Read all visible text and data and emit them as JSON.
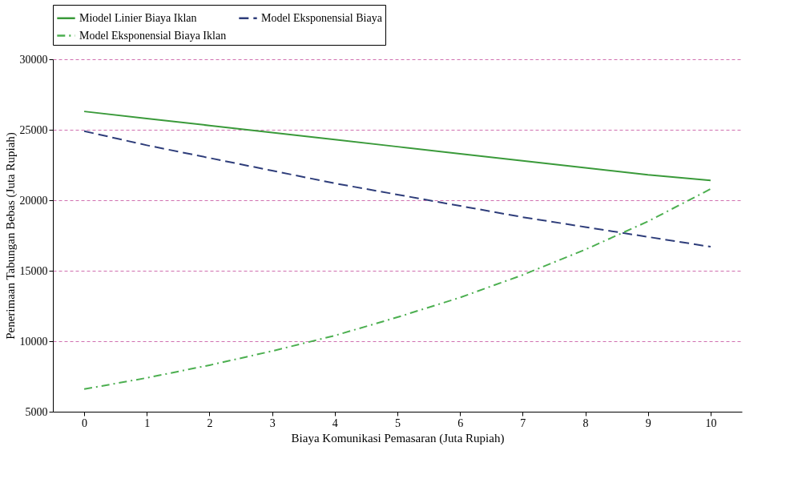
{
  "chart_data": {
    "type": "line",
    "xlabel": "Biaya Komunikasi Pemasaran (Juta Rupiah)",
    "ylabel": "Penerimaan Tabungan Bebas (Juta Rupiah)",
    "categories": [
      "0",
      "1",
      "2",
      "3",
      "4",
      "5",
      "6",
      "7",
      "8",
      "9",
      "10"
    ],
    "series": [
      {
        "name": "Miodel Linier Biaya Iklan",
        "color": "#3a9a3a",
        "line_style": "solid",
        "values": [
          26300,
          25800,
          25300,
          24800,
          24300,
          23800,
          23300,
          22800,
          22300,
          21800,
          21400
        ]
      },
      {
        "name": "Model Eksponensial Biaya",
        "color": "#2e3d7a",
        "line_style": "dashed",
        "values": [
          24900,
          23900,
          23000,
          22100,
          21200,
          20400,
          19600,
          18800,
          18100,
          17400,
          16700
        ]
      },
      {
        "name": "Model Eksponensial Biaya Iklan",
        "color": "#4caf50",
        "line_style": "dashdot",
        "values": [
          6600,
          7400,
          8300,
          9300,
          10400,
          11700,
          13100,
          14700,
          16500,
          18500,
          20800
        ]
      }
    ],
    "ylim": [
      5000,
      30000
    ],
    "yticks": [
      5000,
      10000,
      15000,
      20000,
      25000,
      30000
    ],
    "grid": "y",
    "legend": "top",
    "marker": "none"
  }
}
